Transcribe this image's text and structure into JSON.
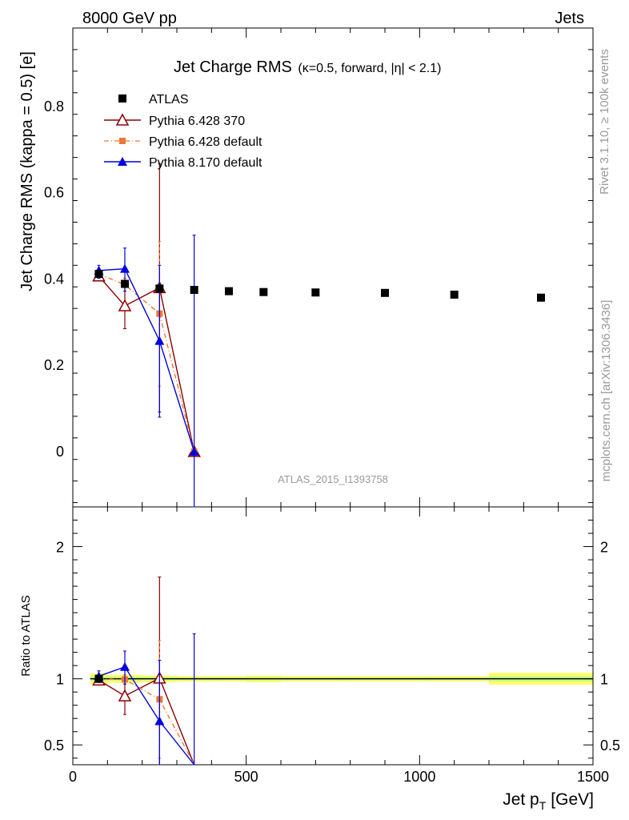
{
  "header": {
    "left": "8000 GeV pp",
    "right": "Jets"
  },
  "side_labels": {
    "rivet": "Rivet 3.1.10, ≥ 100k events",
    "mcplots": "mcplots.cern.ch [arXiv:1306.3436]"
  },
  "watermark": "ATLAS_2015_I1393758",
  "colors": {
    "atlas": "#000000",
    "py6_370": "#8b0000",
    "py6_def": "#ee7733",
    "py8": "#0000dd",
    "band_inner": "#ffff66",
    "band_outer": "#ccff88"
  },
  "chart_data": [
    {
      "type": "scatter",
      "title": "Jet Charge RMS",
      "subtitle": "(κ=0.5, forward, |η| < 2.1)",
      "xlabel": "Jet p",
      "xlabel_sub": "T",
      "xlabel_unit": "[GeV]",
      "ylabel": "Jet Charge RMS (kappa = 0.5) [e]",
      "xlim": [
        0,
        1500
      ],
      "ylim": [
        -0.13,
        0.98
      ],
      "yticks": [
        "0",
        "0.2",
        "0.4",
        "0.6",
        "0.8"
      ],
      "legend_position": "top-left",
      "series": [
        {
          "name": "ATLAS",
          "marker": "square",
          "x": [
            75,
            150,
            250,
            350,
            450,
            550,
            700,
            900,
            1100,
            1350
          ],
          "y": [
            0.41,
            0.387,
            0.376,
            0.373,
            0.37,
            0.368,
            0.367,
            0.366,
            0.362,
            0.355
          ]
        },
        {
          "name": "Pythia 6.428 370",
          "marker": "open-triangle",
          "line": "solid",
          "x": [
            75,
            150,
            250,
            350
          ],
          "y": [
            0.405,
            0.336,
            0.378,
            -0.002
          ],
          "yerr_low": [
            0.405,
            0.283,
            0.09,
            null
          ],
          "yerr_high": [
            0.415,
            0.39,
            0.665,
            null
          ]
        },
        {
          "name": "Pythia 6.428 default",
          "marker": "small-square",
          "line": "dashdot",
          "x": [
            75,
            150,
            250,
            350
          ],
          "y": [
            0.41,
            0.385,
            0.318,
            -0.002
          ],
          "yerr_low": [
            0.4,
            0.37,
            0.15,
            null
          ],
          "yerr_high": [
            0.42,
            0.4,
            0.485,
            null
          ]
        },
        {
          "name": "Pythia 8.170 default",
          "marker": "filled-triangle",
          "line": "solid",
          "x": [
            75,
            150,
            250,
            350
          ],
          "y": [
            0.418,
            0.422,
            0.255,
            -0.002
          ],
          "yerr_low": [
            0.4,
            0.37,
            0.078,
            -0.13
          ],
          "yerr_high": [
            0.43,
            0.47,
            0.43,
            0.5
          ]
        }
      ]
    },
    {
      "type": "line",
      "title": "",
      "xlabel": "Jet p",
      "ylabel": "Ratio to ATLAS",
      "xlim": [
        0,
        1500
      ],
      "ylim": [
        0.35,
        2.3
      ],
      "xticks": [
        "0",
        "500",
        "1000",
        "1500"
      ],
      "yticks": [
        "0.5",
        "1",
        "2"
      ],
      "reference_band": [
        {
          "x0": 50,
          "x1": 100,
          "half_width": 0.04
        },
        {
          "x0": 100,
          "x1": 200,
          "half_width": 0.03
        },
        {
          "x0": 200,
          "x1": 300,
          "half_width": 0.025
        },
        {
          "x0": 300,
          "x1": 400,
          "half_width": 0.02
        },
        {
          "x0": 400,
          "x1": 500,
          "half_width": 0.02
        },
        {
          "x0": 500,
          "x1": 600,
          "half_width": 0.025
        },
        {
          "x0": 600,
          "x1": 800,
          "half_width": 0.02
        },
        {
          "x0": 800,
          "x1": 1000,
          "half_width": 0.02
        },
        {
          "x0": 1000,
          "x1": 1200,
          "half_width": 0.02
        },
        {
          "x0": 1200,
          "x1": 1500,
          "half_width": 0.045
        }
      ],
      "series": [
        {
          "name": "Pythia 6.428 370",
          "x": [
            75,
            150,
            250,
            350
          ],
          "y": [
            0.99,
            0.87,
            1.005,
            0.0
          ],
          "yerr_low": [
            0.96,
            0.73,
            0.24,
            null
          ],
          "yerr_high": [
            1.02,
            1.01,
            1.77,
            null
          ]
        },
        {
          "name": "Pythia 6.428 default",
          "x": [
            75,
            150,
            250,
            350
          ],
          "y": [
            1.0,
            0.995,
            0.845,
            0.0
          ],
          "yerr_low": [
            0.97,
            0.96,
            0.4,
            null
          ],
          "yerr_high": [
            1.03,
            1.03,
            1.29,
            null
          ]
        },
        {
          "name": "Pythia 8.170 default",
          "x": [
            75,
            150,
            250,
            350
          ],
          "y": [
            1.02,
            1.09,
            0.68,
            0.0
          ],
          "yerr_low": [
            0.975,
            0.96,
            0.21,
            0.0
          ],
          "yerr_high": [
            1.06,
            1.21,
            1.14,
            1.34
          ]
        }
      ]
    }
  ]
}
